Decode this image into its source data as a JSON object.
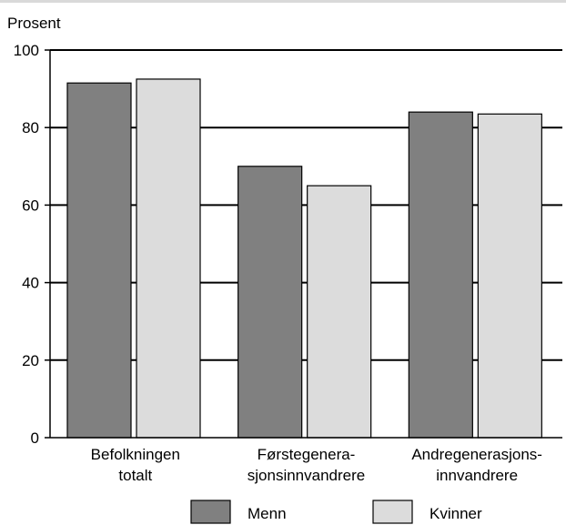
{
  "chart_data": {
    "type": "bar",
    "ylabel": "Prosent",
    "ylim": [
      0,
      100
    ],
    "yticks": [
      0,
      20,
      40,
      60,
      80,
      100
    ],
    "grid": true,
    "legend_position": "bottom",
    "categories": [
      [
        "Befolkningen",
        "totalt"
      ],
      [
        "Førstegenera-",
        "sjonsinnvandrere"
      ],
      [
        "Andregenerasjons-",
        "innvandrere"
      ]
    ],
    "series": [
      {
        "name": "Menn",
        "color": "#808080",
        "values": [
          91.5,
          70,
          84
        ]
      },
      {
        "name": "Kvinner",
        "color": "#dcdcdc",
        "values": [
          92.5,
          65,
          83.5
        ]
      }
    ]
  }
}
